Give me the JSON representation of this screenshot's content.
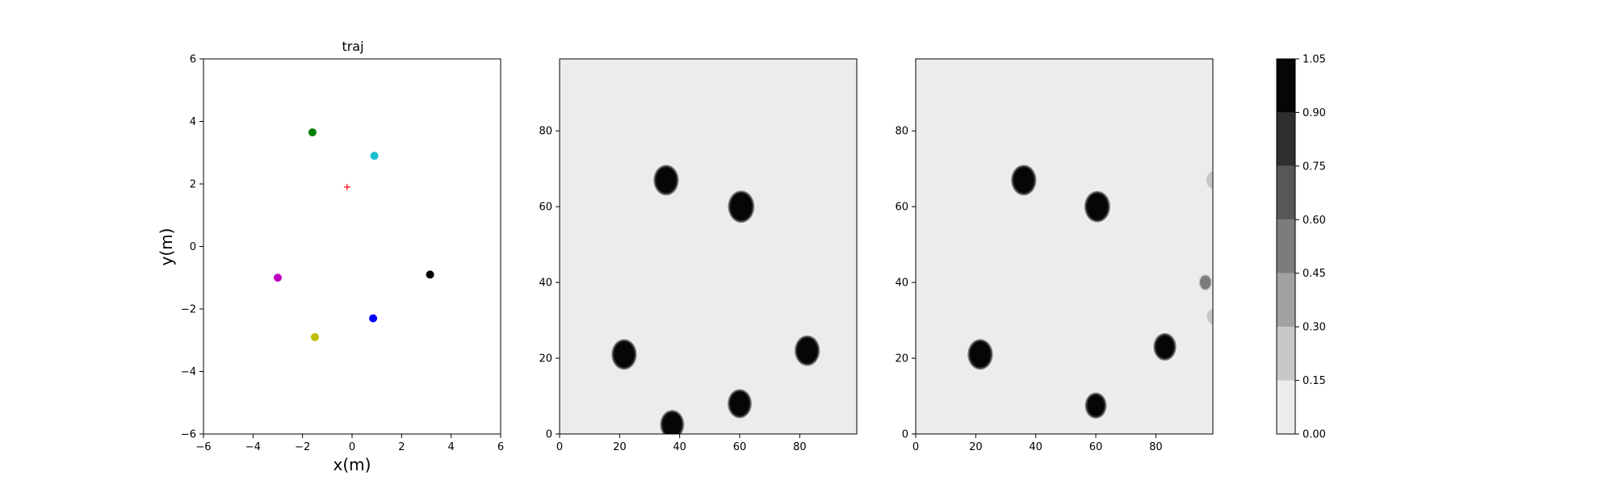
{
  "chart_data": [
    {
      "type": "scatter",
      "title": "traj",
      "xlabel": "x(m)",
      "ylabel": "y(m)",
      "xlim": [
        -6,
        6
      ],
      "ylim": [
        -6,
        6
      ],
      "xticks": [
        "−6",
        "−4",
        "−2",
        "0",
        "2",
        "4",
        "6"
      ],
      "yticks": [
        "−6",
        "−4",
        "−2",
        "0",
        "2",
        "4",
        "6"
      ],
      "grid": false,
      "points": [
        {
          "x": -1.6,
          "y": 3.65,
          "color": "#008000",
          "marker": "o"
        },
        {
          "x": 0.9,
          "y": 2.9,
          "color": "#17becf",
          "marker": "o"
        },
        {
          "x": -3.0,
          "y": -1.0,
          "color": "#bf00bf",
          "marker": "o"
        },
        {
          "x": 3.15,
          "y": -0.9,
          "color": "#000000",
          "marker": "o"
        },
        {
          "x": 0.85,
          "y": -2.3,
          "color": "#0000ff",
          "marker": "o"
        },
        {
          "x": -1.5,
          "y": -2.9,
          "color": "#bfbf00",
          "marker": "o"
        },
        {
          "x": -0.2,
          "y": 1.9,
          "color": "#ff0000",
          "marker": "+"
        }
      ]
    },
    {
      "type": "heatmap",
      "xlabel": "",
      "ylabel": "",
      "xlim": [
        0,
        99
      ],
      "ylim": [
        0,
        99
      ],
      "xticks": [
        "0",
        "20",
        "40",
        "60",
        "80"
      ],
      "yticks": [
        "0",
        "20",
        "40",
        "60",
        "80"
      ],
      "background_value": 0.05,
      "blobs": [
        {
          "x": 35.5,
          "y": 67,
          "radius": 3.4,
          "value": 1.0
        },
        {
          "x": 60.5,
          "y": 60,
          "radius": 3.6,
          "value": 1.0
        },
        {
          "x": 21.5,
          "y": 21,
          "radius": 3.4,
          "value": 1.0
        },
        {
          "x": 82.5,
          "y": 22,
          "radius": 3.4,
          "value": 1.0
        },
        {
          "x": 60,
          "y": 8,
          "radius": 3.2,
          "value": 1.0
        },
        {
          "x": 37.5,
          "y": 2.5,
          "radius": 3.2,
          "value": 1.0
        }
      ]
    },
    {
      "type": "heatmap",
      "xlabel": "",
      "ylabel": "",
      "xlim": [
        0,
        99
      ],
      "ylim": [
        0,
        99
      ],
      "xticks": [
        "0",
        "20",
        "40",
        "60",
        "80"
      ],
      "yticks": [
        "0",
        "20",
        "40",
        "60",
        "80"
      ],
      "background_value": 0.05,
      "blobs": [
        {
          "x": 36,
          "y": 67,
          "radius": 3.4,
          "value": 1.0
        },
        {
          "x": 60.5,
          "y": 60,
          "radius": 3.5,
          "value": 1.0
        },
        {
          "x": 21.5,
          "y": 21,
          "radius": 3.4,
          "value": 1.0
        },
        {
          "x": 83,
          "y": 23,
          "radius": 3.0,
          "value": 1.0
        },
        {
          "x": 60,
          "y": 7.5,
          "radius": 2.8,
          "value": 1.0
        },
        {
          "x": 96.5,
          "y": 40,
          "radius": 1.8,
          "value": 0.5
        },
        {
          "x": 99,
          "y": 67,
          "radius": 2.2,
          "value": 0.3
        },
        {
          "x": 99,
          "y": 31,
          "radius": 2.0,
          "value": 0.25
        }
      ]
    }
  ],
  "colorbar": {
    "ticks": [
      "0.00",
      "0.15",
      "0.30",
      "0.45",
      "0.60",
      "0.75",
      "0.90",
      "1.05"
    ],
    "levels": [
      0.0,
      0.15,
      0.3,
      0.45,
      0.6,
      0.75,
      0.9,
      1.05
    ],
    "colors": [
      "#ececec",
      "#c8c8c8",
      "#a2a2a2",
      "#7c7c7c",
      "#575757",
      "#2f2f2f",
      "#060606"
    ]
  }
}
